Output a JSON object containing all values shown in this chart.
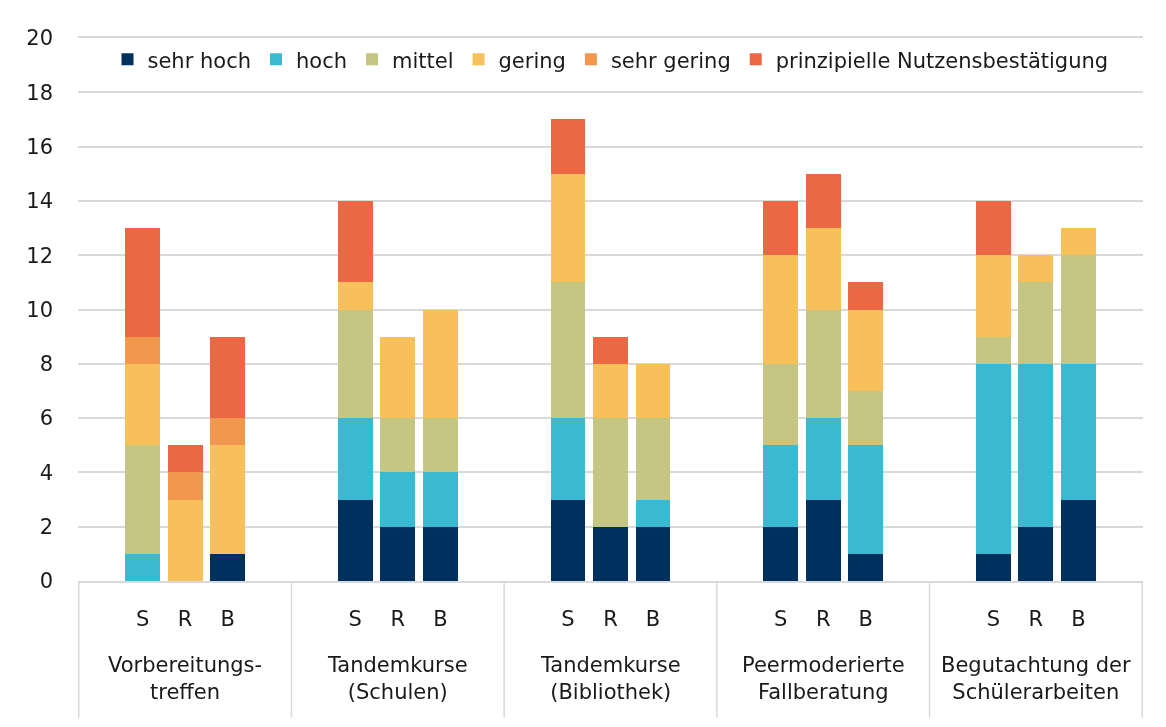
{
  "chart_data": {
    "type": "bar",
    "stacked": true,
    "categories": [
      null,
      "S",
      "R",
      "B",
      null,
      null,
      "S",
      "R",
      "B",
      null,
      null,
      "S",
      "R",
      "B",
      null,
      null,
      "S",
      "R",
      "B",
      null,
      null,
      "S",
      "R",
      "B",
      null
    ],
    "annotations": [
      "Vorbereitungs-\ntreffen",
      "Tandemkurse\n(Schulen)",
      "Tandemkurse\n(Bibliothek)",
      "Peermoderierte\nFallberatung",
      "Begutachtung der\nSchülerarbeiten"
    ],
    "series": [
      {
        "name": "sehr hoch",
        "color": "#00305e",
        "values": [
          null,
          0,
          0,
          1,
          null,
          null,
          3,
          2,
          2,
          null,
          null,
          3,
          2,
          2,
          null,
          null,
          2,
          3,
          1,
          null,
          null,
          1,
          2,
          3,
          null
        ]
      },
      {
        "name": "hoch",
        "color": "#3cb9d2",
        "values": [
          null,
          1,
          0,
          0,
          null,
          null,
          3,
          2,
          2,
          null,
          null,
          3,
          0,
          1,
          null,
          null,
          3,
          3,
          4,
          null,
          null,
          7,
          6,
          5,
          null
        ]
      },
      {
        "name": "mittel",
        "color": "#c6c684",
        "values": [
          null,
          4,
          0,
          0,
          null,
          null,
          4,
          2,
          2,
          null,
          null,
          5,
          4,
          3,
          null,
          null,
          3,
          4,
          2,
          null,
          null,
          1,
          3,
          4,
          null
        ]
      },
      {
        "name": "gering",
        "color": "#f8c05a",
        "values": [
          null,
          3,
          3,
          4,
          null,
          null,
          1,
          3,
          4,
          null,
          null,
          4,
          2,
          2,
          null,
          null,
          4,
          3,
          3,
          null,
          null,
          3,
          1,
          1,
          null
        ]
      },
      {
        "name": "sehr gering",
        "color": "#f2974e",
        "values": [
          null,
          1,
          1,
          1,
          null,
          null,
          0,
          0,
          0,
          null,
          null,
          0,
          0,
          0,
          null,
          null,
          0,
          0,
          0,
          null,
          null,
          0,
          0,
          0,
          null
        ]
      },
      {
        "name": "prinzipielle Nutzensbestätigung",
        "color": "#ec6845",
        "values": [
          null,
          4,
          1,
          3,
          null,
          null,
          3,
          0,
          0,
          null,
          null,
          2,
          1,
          0,
          null,
          null,
          2,
          2,
          1,
          null,
          null,
          2,
          0,
          0,
          null
        ]
      }
    ],
    "ylim": [
      0,
      20
    ],
    "yticks": [
      0,
      2,
      4,
      6,
      8,
      10,
      12,
      14,
      16,
      18,
      20
    ],
    "grid": "y",
    "legend": "top"
  }
}
